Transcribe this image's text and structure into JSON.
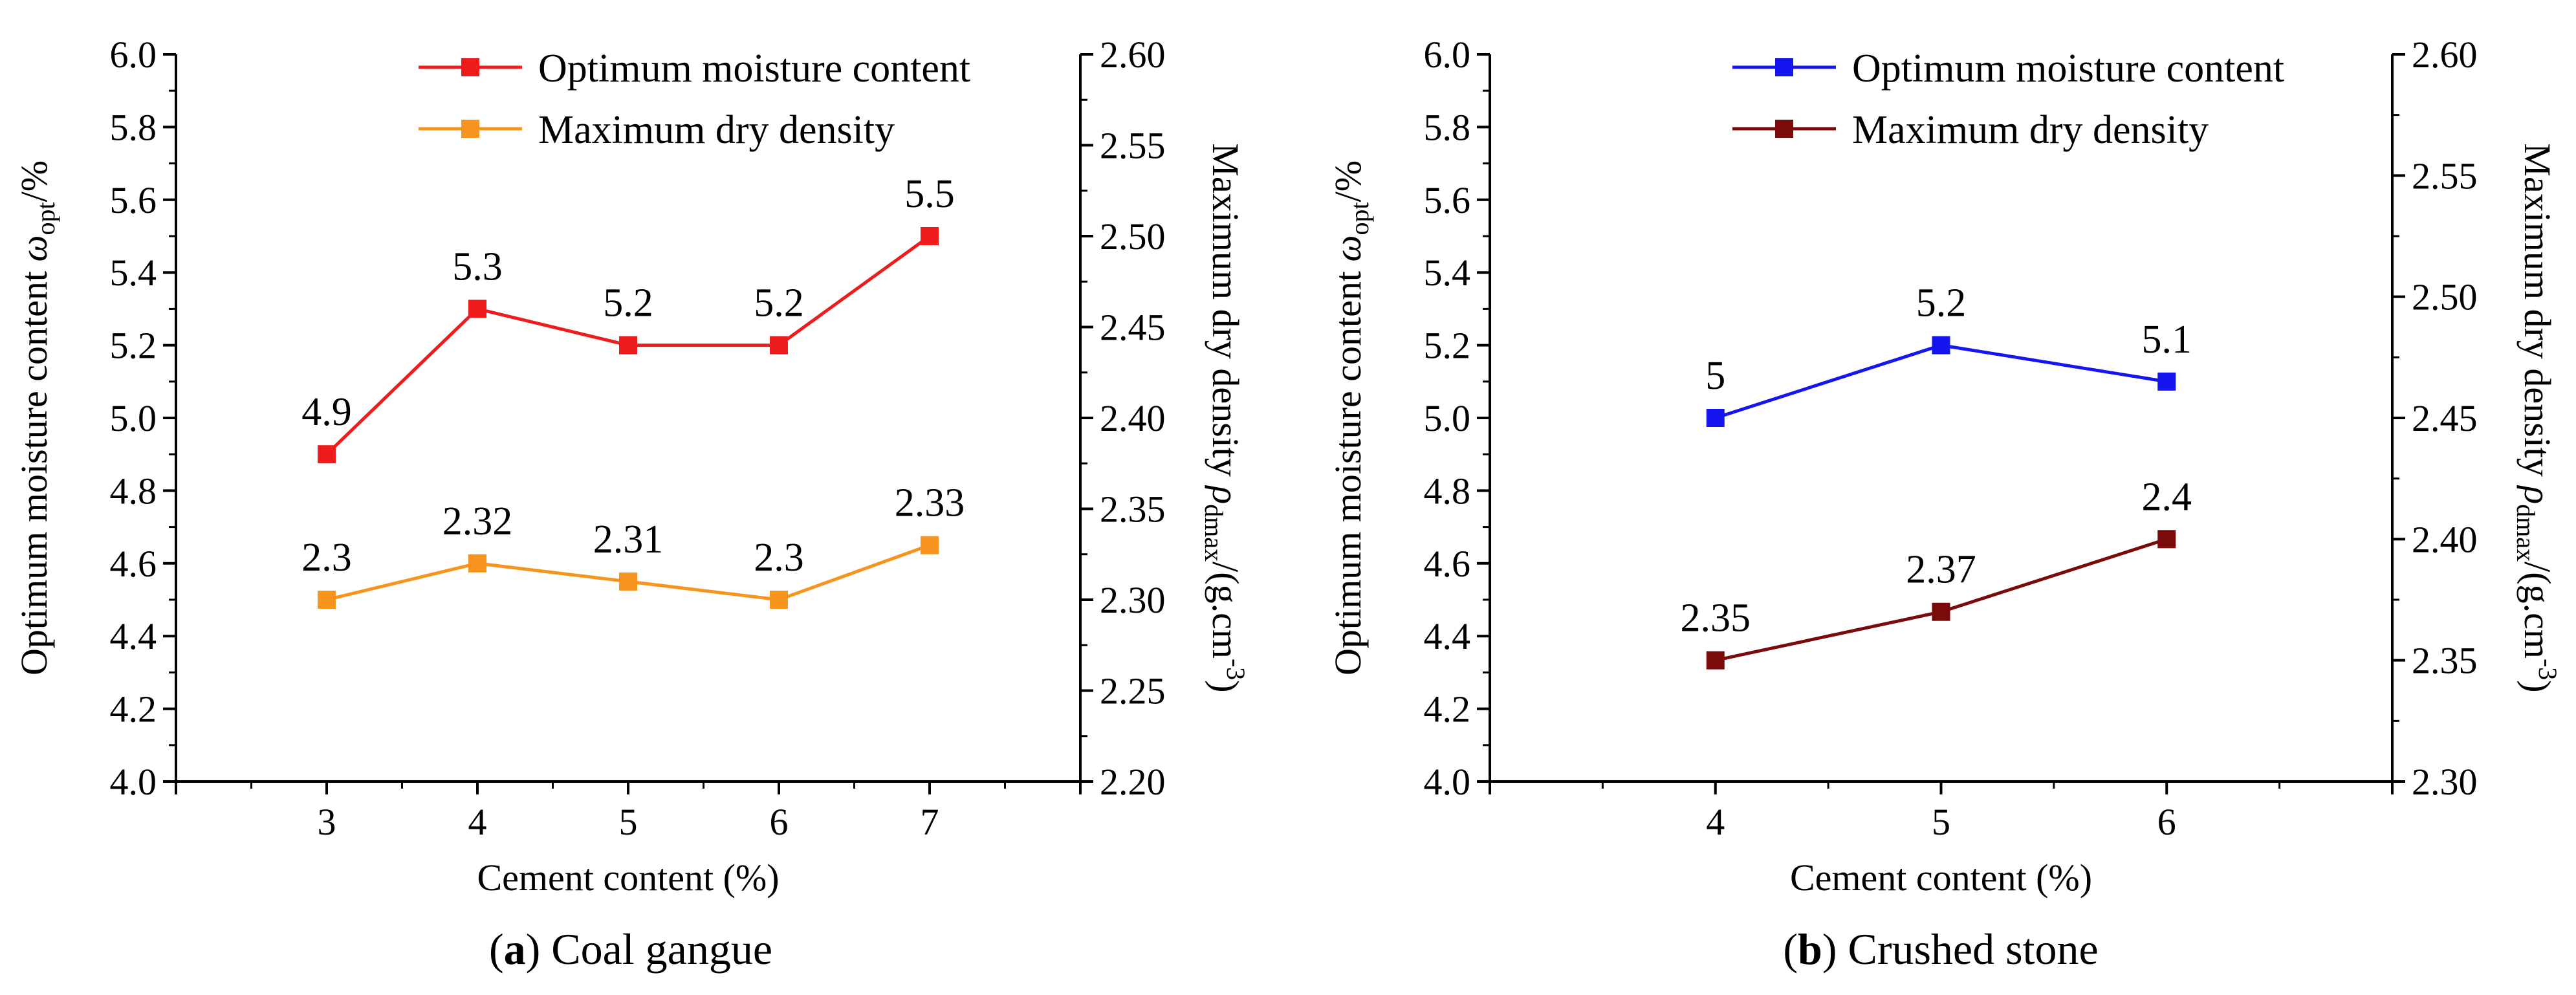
{
  "chart_data": [
    {
      "type": "line",
      "caption": {
        "letter": "a",
        "open": "(",
        "close": ")",
        "text": " Coal gangue"
      },
      "xlabel": "Cement content (%)",
      "ylabel": {
        "main": "Optimum moisture content ",
        "symbol": "ω",
        "sub": "opt",
        "tail": "/%"
      },
      "y2label": {
        "main": "Maximum dry density ",
        "symbol": "ρ",
        "sub": "dmax",
        "tail": "/(g.cm",
        "sup": "-3",
        "end": ")"
      },
      "x": [
        3,
        4,
        5,
        6,
        7
      ],
      "xlim": [
        2,
        8
      ],
      "xticks": [
        "3",
        "4",
        "5",
        "6",
        "7"
      ],
      "ylim": [
        4.0,
        6.0
      ],
      "yticks": [
        "4.0",
        "4.2",
        "4.4",
        "4.6",
        "4.8",
        "5.0",
        "5.2",
        "5.4",
        "5.6",
        "5.8",
        "6.0"
      ],
      "y2lim": [
        2.2,
        2.6
      ],
      "y2ticks": [
        "2.20",
        "2.25",
        "2.30",
        "2.35",
        "2.40",
        "2.45",
        "2.50",
        "2.55",
        "2.60"
      ],
      "series": [
        {
          "name": "Optimum moisture content",
          "axis": "left",
          "color": "#ee1c1c",
          "values": [
            4.9,
            5.3,
            5.2,
            5.2,
            5.5
          ],
          "labels": [
            "4.9",
            "5.3",
            "5.2",
            "5.2",
            "5.5"
          ]
        },
        {
          "name": "Maximum dry density",
          "axis": "right",
          "color": "#f7941d",
          "values": [
            2.3,
            2.32,
            2.31,
            2.3,
            2.33
          ],
          "labels": [
            "2.3",
            "2.32",
            "2.31",
            "2.3",
            "2.33"
          ]
        }
      ]
    },
    {
      "type": "line",
      "caption": {
        "letter": "b",
        "open": "(",
        "close": ")",
        "text": " Crushed stone"
      },
      "xlabel": "Cement content (%)",
      "ylabel": {
        "main": "Optimum moisture content ",
        "symbol": "ω",
        "sub": "opt",
        "tail": "/%"
      },
      "y2label": {
        "main": "Maximum dry density ",
        "symbol": "ρ",
        "sub": "dmax",
        "tail": "/(g.cm",
        "sup": "-3",
        "end": ")"
      },
      "x": [
        4,
        5,
        6
      ],
      "xlim": [
        3,
        7
      ],
      "xticks": [
        "4",
        "5",
        "6"
      ],
      "ylim": [
        4.0,
        6.0
      ],
      "yticks": [
        "4.0",
        "4.2",
        "4.4",
        "4.6",
        "4.8",
        "5.0",
        "5.2",
        "5.4",
        "5.6",
        "5.8",
        "6.0"
      ],
      "y2lim": [
        2.3,
        2.6
      ],
      "y2ticks": [
        "2.30",
        "2.35",
        "2.40",
        "2.45",
        "2.50",
        "2.55",
        "2.60"
      ],
      "series": [
        {
          "name": "Optimum moisture content",
          "axis": "left",
          "color": "#1515f0",
          "values": [
            5.0,
            5.2,
            5.1
          ],
          "labels": [
            "5",
            "5.2",
            "5.1"
          ]
        },
        {
          "name": "Maximum dry density",
          "axis": "right",
          "color": "#7b0a0a",
          "values": [
            2.35,
            2.37,
            2.4
          ],
          "labels": [
            "2.35",
            "2.37",
            "2.4"
          ]
        }
      ]
    }
  ]
}
